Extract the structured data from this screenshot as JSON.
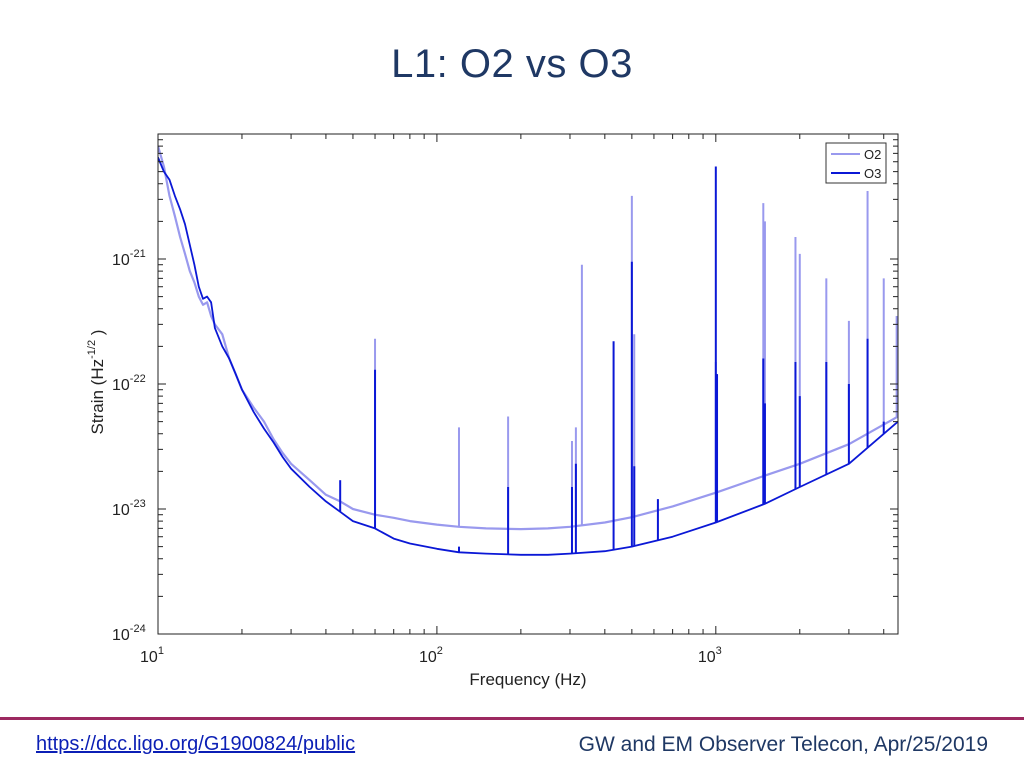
{
  "slide": {
    "title": "L1: O2 vs O3",
    "footer_link": "https://dcc.ligo.org/G1900824/public",
    "footer_meta": "GW and EM Observer Telecon, Apr/25/2019"
  },
  "chart_data": {
    "type": "line",
    "title": "",
    "xlabel": "Frequency (Hz)",
    "ylabel": "Strain (Hz^-1/2)",
    "x_scale": "log",
    "y_scale": "log",
    "xlim": [
      10,
      4500
    ],
    "ylim": [
      1e-24,
      1e-20
    ],
    "x_ticks": [
      {
        "base": "10",
        "exp": "1"
      },
      {
        "base": "10",
        "exp": "2"
      },
      {
        "base": "10",
        "exp": "3"
      }
    ],
    "y_ticks": [
      {
        "base": "10",
        "exp": "-24"
      },
      {
        "base": "10",
        "exp": "-23"
      },
      {
        "base": "10",
        "exp": "-22"
      },
      {
        "base": "10",
        "exp": "-21"
      }
    ],
    "grid": false,
    "legend_position": "top-right",
    "series": [
      {
        "name": "O2",
        "color": "#9999ee",
        "points": [
          [
            10,
            8e-21
          ],
          [
            10.5,
            5.5e-21
          ],
          [
            11,
            3.2e-21
          ],
          [
            11.5,
            2.2e-21
          ],
          [
            12,
            1.5e-21
          ],
          [
            12.5,
            1.1e-21
          ],
          [
            13,
            8e-22
          ],
          [
            13.5,
            6.5e-22
          ],
          [
            14,
            5e-22
          ],
          [
            14.5,
            4.3e-22
          ],
          [
            15,
            4.5e-22
          ],
          [
            15.5,
            3.5e-22
          ],
          [
            16,
            3e-22
          ],
          [
            17,
            2.5e-22
          ],
          [
            18,
            1.6e-22
          ],
          [
            19,
            1.2e-22
          ],
          [
            20,
            9e-23
          ],
          [
            22,
            6.5e-23
          ],
          [
            24,
            5e-23
          ],
          [
            26,
            3.6e-23
          ],
          [
            28,
            2.8e-23
          ],
          [
            30,
            2.3e-23
          ],
          [
            35,
            1.7e-23
          ],
          [
            40,
            1.3e-23
          ],
          [
            45,
            1.15e-23
          ],
          [
            50,
            1e-23
          ],
          [
            60,
            9e-24
          ],
          [
            70,
            8.5e-24
          ],
          [
            80,
            8e-24
          ],
          [
            100,
            7.5e-24
          ],
          [
            120,
            7.2e-24
          ],
          [
            150,
            7e-24
          ],
          [
            200,
            6.9e-24
          ],
          [
            250,
            7e-24
          ],
          [
            300,
            7.2e-24
          ],
          [
            400,
            7.8e-24
          ],
          [
            500,
            8.6e-24
          ],
          [
            700,
            1.05e-23
          ],
          [
            1000,
            1.35e-23
          ],
          [
            1500,
            1.85e-23
          ],
          [
            2000,
            2.3e-23
          ],
          [
            3000,
            3.3e-23
          ],
          [
            4500,
            5.5e-23
          ]
        ],
        "lines": [
          [
            60,
            2.3e-22
          ],
          [
            120,
            4.5e-23
          ],
          [
            180,
            5.5e-23
          ],
          [
            305,
            3.5e-23
          ],
          [
            315,
            4.5e-23
          ],
          [
            331,
            9e-22
          ],
          [
            500,
            3.2e-21
          ],
          [
            510,
            2.5e-22
          ],
          [
            1000,
            1.5e-22
          ],
          [
            1010,
            1.2e-22
          ],
          [
            1480,
            2.8e-21
          ],
          [
            1500,
            2e-21
          ],
          [
            1930,
            1.5e-21
          ],
          [
            2000,
            1.1e-21
          ],
          [
            2490,
            7e-22
          ],
          [
            3000,
            3.2e-22
          ],
          [
            3500,
            3.5e-21
          ],
          [
            4000,
            7e-22
          ],
          [
            4450,
            3.5e-22
          ]
        ]
      },
      {
        "name": "O3",
        "color": "#0b18d6",
        "points": [
          [
            10,
            6.5e-21
          ],
          [
            10.5,
            5e-21
          ],
          [
            11,
            4.3e-21
          ],
          [
            11.5,
            3.2e-21
          ],
          [
            12,
            2.5e-21
          ],
          [
            12.5,
            1.9e-21
          ],
          [
            13,
            1.3e-21
          ],
          [
            13.5,
            9e-22
          ],
          [
            14,
            6e-22
          ],
          [
            14.5,
            4.8e-22
          ],
          [
            15,
            5e-22
          ],
          [
            15.5,
            4.5e-22
          ],
          [
            16,
            2.8e-22
          ],
          [
            17,
            2e-22
          ],
          [
            18,
            1.6e-22
          ],
          [
            19,
            1.2e-22
          ],
          [
            20,
            9e-23
          ],
          [
            22,
            6e-23
          ],
          [
            24,
            4.4e-23
          ],
          [
            26,
            3.4e-23
          ],
          [
            28,
            2.6e-23
          ],
          [
            30,
            2.1e-23
          ],
          [
            35,
            1.5e-23
          ],
          [
            40,
            1.15e-23
          ],
          [
            45,
            9.5e-24
          ],
          [
            50,
            8e-24
          ],
          [
            60,
            7e-24
          ],
          [
            70,
            5.8e-24
          ],
          [
            80,
            5.3e-24
          ],
          [
            100,
            4.8e-24
          ],
          [
            120,
            4.5e-24
          ],
          [
            150,
            4.4e-24
          ],
          [
            200,
            4.3e-24
          ],
          [
            250,
            4.3e-24
          ],
          [
            300,
            4.4e-24
          ],
          [
            400,
            4.6e-24
          ],
          [
            500,
            5e-24
          ],
          [
            700,
            6e-24
          ],
          [
            1000,
            7.8e-24
          ],
          [
            1500,
            1.1e-23
          ],
          [
            2000,
            1.5e-23
          ],
          [
            3000,
            2.3e-23
          ],
          [
            4500,
            5e-23
          ]
        ],
        "lines": [
          [
            45,
            1.7e-23
          ],
          [
            60,
            1.3e-22
          ],
          [
            120,
            5e-24
          ],
          [
            180,
            1.5e-23
          ],
          [
            305,
            1.5e-23
          ],
          [
            315,
            2.3e-23
          ],
          [
            430,
            2.2e-22
          ],
          [
            500,
            9.5e-22
          ],
          [
            510,
            2.2e-23
          ],
          [
            620,
            1.2e-23
          ],
          [
            1000,
            5.5e-21
          ],
          [
            1010,
            1.2e-22
          ],
          [
            1480,
            1.6e-22
          ],
          [
            1500,
            7e-23
          ],
          [
            1930,
            1.5e-22
          ],
          [
            2000,
            8e-23
          ],
          [
            2490,
            1.5e-22
          ],
          [
            3000,
            1e-22
          ],
          [
            3500,
            2.3e-22
          ],
          [
            4000,
            5e-23
          ]
        ]
      }
    ]
  }
}
